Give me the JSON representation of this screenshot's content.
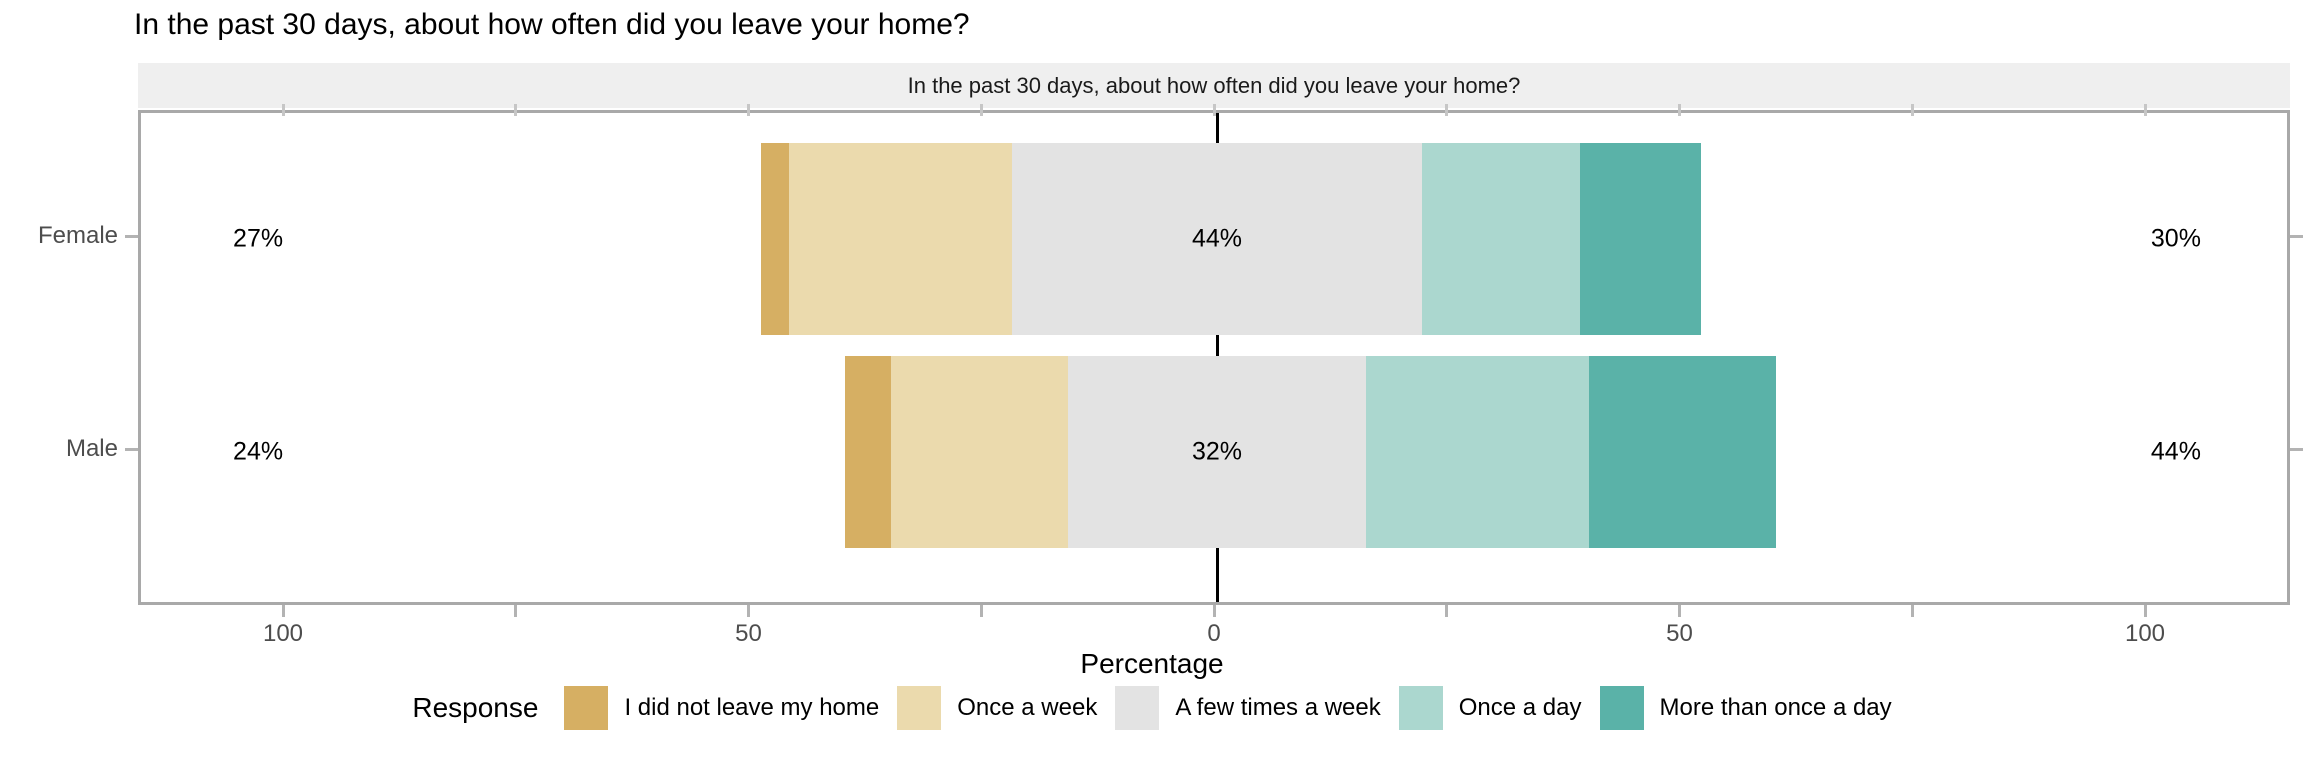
{
  "title": "In the past 30 days, about how often did you leave your home?",
  "chart_data": {
    "type": "diverging_stacked_bar",
    "title": "In the past 30 days, about how often did you leave your home?",
    "facet_label": "In the past 30 days, about how often did you leave your home?",
    "xlabel": "Percentage",
    "legend_title": "Response",
    "legend_position": "bottom",
    "axis": {
      "range": [
        -115,
        115
      ],
      "minor_tick_positions": [
        -100,
        -75,
        -50,
        -25,
        0,
        25,
        50,
        75,
        100
      ],
      "labeled_ticks": [
        {
          "pos": -100,
          "label": "100"
        },
        {
          "pos": -50,
          "label": "50"
        },
        {
          "pos": 0,
          "label": "0"
        },
        {
          "pos": 50,
          "label": "50"
        },
        {
          "pos": 100,
          "label": "100"
        }
      ]
    },
    "responses": [
      {
        "label": "I did not leave my home",
        "color": "#D6AF63"
      },
      {
        "label": "Once a week",
        "color": "#EBDAAD"
      },
      {
        "label": "A few times a week",
        "color": "#E3E3E3"
      },
      {
        "label": "Once a day",
        "color": "#ABD7CF"
      },
      {
        "label": "More than once a day",
        "color": "#5AB2A8"
      }
    ],
    "rows": [
      {
        "label": "Female",
        "values": [
          3,
          24,
          44,
          17,
          13
        ],
        "left_label": "27%",
        "center_label": "44%",
        "right_label": "30%"
      },
      {
        "label": "Male",
        "values": [
          5,
          19,
          32,
          24,
          20
        ],
        "left_label": "24%",
        "center_label": "32%",
        "right_label": "44%"
      }
    ],
    "style": {
      "strip_background": "#EFEFEF",
      "panel_border_color": "#A9A9A9",
      "tick_color": "#B3B3B3",
      "axis_text_color": "#4D4D4D",
      "zero_line_color": "#000000"
    }
  }
}
